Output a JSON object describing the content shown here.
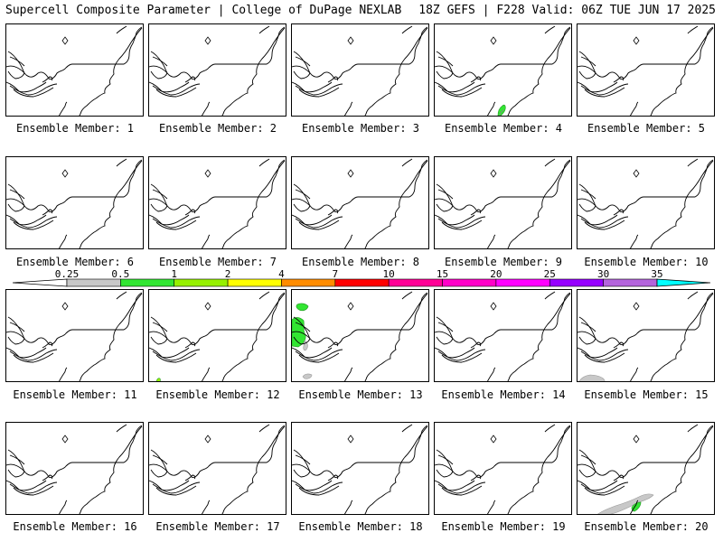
{
  "header": {
    "left": "Supercell Composite Parameter | College of DuPage NEXLAB",
    "right": "18Z GEFS | F228 Valid: 06Z TUE JUN 17 2025"
  },
  "colorbar": {
    "labels": [
      "0.25",
      "0.5",
      "1",
      "2",
      "4",
      "7",
      "10",
      "15",
      "20",
      "25",
      "30",
      "35"
    ],
    "colors": [
      "#c8c8c8",
      "#32e632",
      "#96f000",
      "#ffff00",
      "#ff8c00",
      "#ff0000",
      "#ff0096",
      "#ff00c8",
      "#ff00ff",
      "#9600ff",
      "#b464dc",
      "#00ffff"
    ]
  },
  "panels": [
    {
      "label": "Ensemble Member: 1",
      "member": 1,
      "shading": []
    },
    {
      "label": "Ensemble Member: 2",
      "member": 2,
      "shading": []
    },
    {
      "label": "Ensemble Member: 3",
      "member": 3,
      "shading": []
    },
    {
      "label": "Ensemble Member: 4",
      "member": 4,
      "shading": [
        "green-se"
      ]
    },
    {
      "label": "Ensemble Member: 5",
      "member": 5,
      "shading": []
    },
    {
      "label": "Ensemble Member: 6",
      "member": 6,
      "shading": []
    },
    {
      "label": "Ensemble Member: 7",
      "member": 7,
      "shading": []
    },
    {
      "label": "Ensemble Member: 8",
      "member": 8,
      "shading": []
    },
    {
      "label": "Ensemble Member: 9",
      "member": 9,
      "shading": []
    },
    {
      "label": "Ensemble Member: 10",
      "member": 10,
      "shading": []
    },
    {
      "label": "Ensemble Member: 11",
      "member": 11,
      "shading": []
    },
    {
      "label": "Ensemble Member: 12",
      "member": 12,
      "shading": [
        "green-sw-dot"
      ]
    },
    {
      "label": "Ensemble Member: 13",
      "member": 13,
      "shading": [
        "green-west",
        "gray-sw"
      ]
    },
    {
      "label": "Ensemble Member: 14",
      "member": 14,
      "shading": []
    },
    {
      "label": "Ensemble Member: 15",
      "member": 15,
      "shading": [
        "gray-sw-large"
      ]
    },
    {
      "label": "Ensemble Member: 16",
      "member": 16,
      "shading": []
    },
    {
      "label": "Ensemble Member: 17",
      "member": 17,
      "shading": []
    },
    {
      "label": "Ensemble Member: 18",
      "member": 18,
      "shading": []
    },
    {
      "label": "Ensemble Member: 19",
      "member": 19,
      "shading": []
    },
    {
      "label": "Ensemble Member: 20",
      "member": 20,
      "shading": [
        "gray-coast",
        "green-coast"
      ]
    }
  ]
}
